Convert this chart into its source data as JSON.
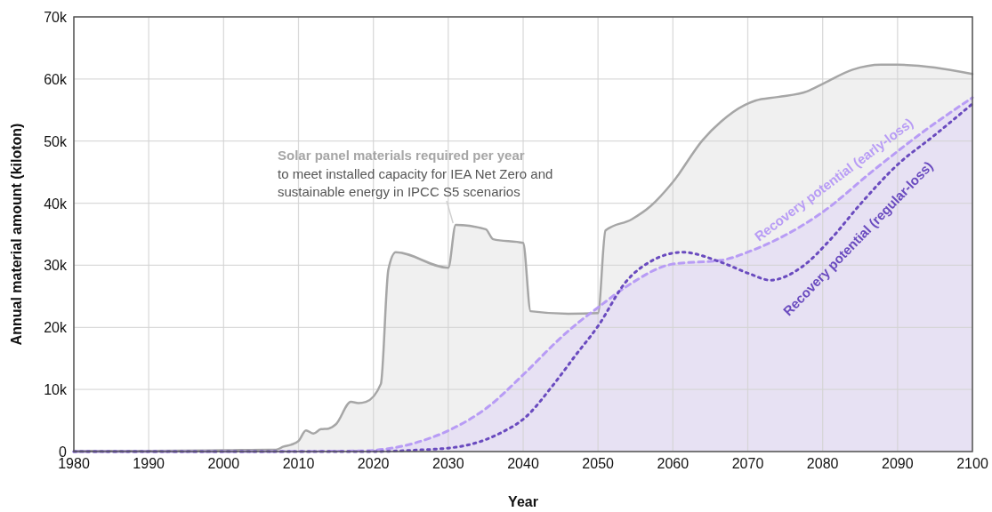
{
  "chart_data": {
    "type": "line",
    "xlabel": "Year",
    "ylabel": "Annual material amount (kiloton)",
    "xlim": [
      1980,
      2100
    ],
    "xticks": [
      1980,
      1990,
      2000,
      2010,
      2020,
      2030,
      2040,
      2050,
      2060,
      2070,
      2080,
      2090,
      2100
    ],
    "ylim": [
      0,
      70000
    ],
    "yticks": [
      0,
      {
        "value": 10000,
        "label": "10k"
      },
      {
        "value": 20000,
        "label": "20k"
      },
      {
        "value": 30000,
        "label": "30k"
      },
      {
        "value": 40000,
        "label": "40k"
      },
      {
        "value": 50000,
        "label": "50k"
      },
      {
        "value": 60000,
        "label": "60k"
      },
      {
        "value": 70000,
        "label": "70k"
      }
    ],
    "grid": true,
    "annotations": [
      {
        "text": "to meet installed capacity for IEA Net Zero and sustainable energy in IPCC S5 scenarios",
        "x": 2031,
        "y": 36500
      }
    ],
    "series": [
      {
        "name": "Solar panel materials required per year",
        "type": "area",
        "color": "#a6a6a6",
        "line_style": "solid",
        "x": [
          1980,
          1990,
          2000,
          2006,
          2007,
          2008,
          2009,
          2010,
          2011,
          2012,
          2013,
          2014,
          2015,
          2017,
          2018,
          2019,
          2021,
          2022,
          2023,
          2030,
          2031,
          2035,
          2036,
          2040,
          2041,
          2046,
          2050,
          2051,
          2054.5,
          2057,
          2060,
          2064,
          2066.4,
          2069.6,
          2071,
          2074,
          2077.9,
          2080.3,
          2084,
          2087.8,
          2090,
          2100
        ],
        "values": [
          100,
          100,
          200,
          300,
          300,
          800,
          1100,
          1700,
          3400,
          2900,
          3600,
          3700,
          4400,
          8000,
          7800,
          8000,
          10900,
          29300,
          32100,
          29600,
          36500,
          35800,
          34200,
          33600,
          22600,
          22200,
          22300,
          35600,
          37400,
          39500,
          43400,
          50200,
          53100,
          55800,
          56500,
          57100,
          58000,
          59400,
          61500,
          62300,
          62300,
          60800
        ]
      },
      {
        "name": "Recovery potential (early-loss)",
        "type": "area",
        "color": "#b89cf5",
        "line_style": "dashed",
        "x": [
          1980,
          2000,
          2018,
          2020,
          2025.6,
          2030.4,
          2035,
          2040.2,
          2045,
          2047.4,
          2050,
          2053.7,
          2060,
          2066.4,
          2071,
          2079.8,
          2087,
          2094,
          2100
        ],
        "values": [
          0,
          0,
          100,
          200,
          1400,
          3600,
          6900,
          12600,
          18300,
          20800,
          23200,
          26500,
          30200,
          30800,
          32600,
          38400,
          45500,
          52000,
          57000
        ]
      },
      {
        "name": "Recovery potential (regular-loss)",
        "color": "#6a4bbf",
        "line_style": "dotted",
        "x": [
          1980,
          2000,
          2020,
          2025,
          2031,
          2037,
          2040.2,
          2044,
          2047,
          2050,
          2053.7,
          2057.3,
          2061.3,
          2066.4,
          2070.3,
          2073,
          2077.3,
          2081,
          2085,
          2090,
          2094.9,
          2100
        ],
        "values": [
          0,
          0,
          0,
          200,
          700,
          3000,
          5400,
          10700,
          15500,
          20200,
          27300,
          30800,
          32100,
          30500,
          28600,
          27600,
          29800,
          34100,
          39800,
          46200,
          50900,
          56000
        ]
      }
    ]
  }
}
